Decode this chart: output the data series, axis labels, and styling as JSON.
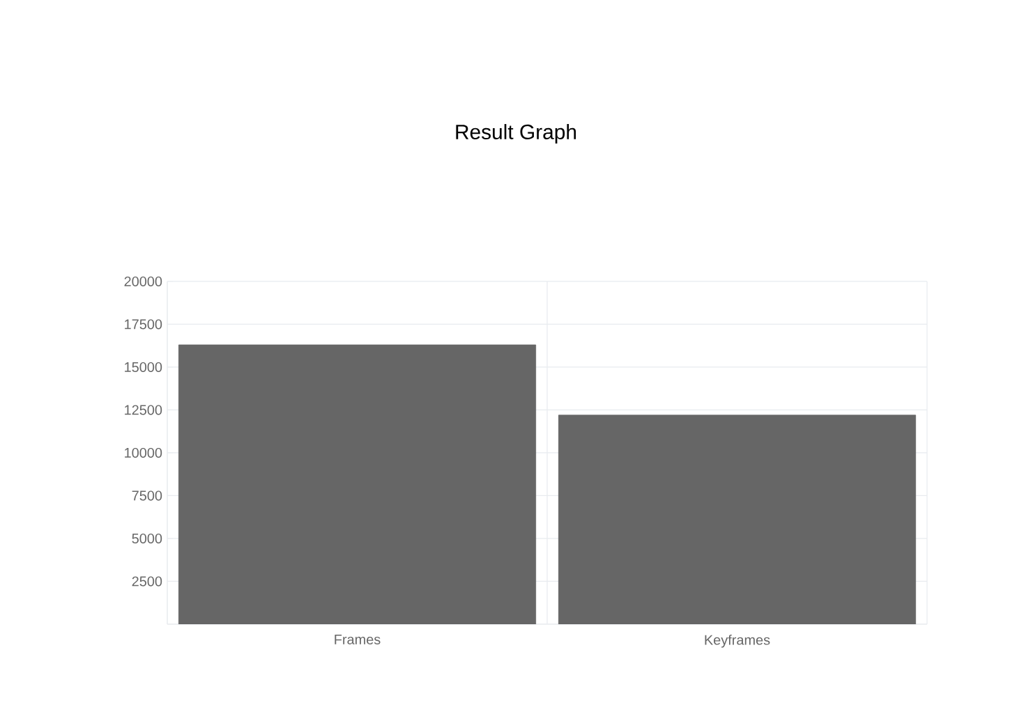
{
  "chart_data": {
    "type": "bar",
    "title": "Result Graph",
    "categories": [
      "Frames",
      "Keyframes"
    ],
    "values": [
      16300,
      12200
    ],
    "color": "#666666",
    "ylim": [
      0,
      20000
    ],
    "yticks": [
      {
        "value": 0,
        "label": null
      },
      2500,
      5000,
      7500,
      10000,
      12500,
      15000,
      17500,
      20000
    ],
    "grid": true
  }
}
